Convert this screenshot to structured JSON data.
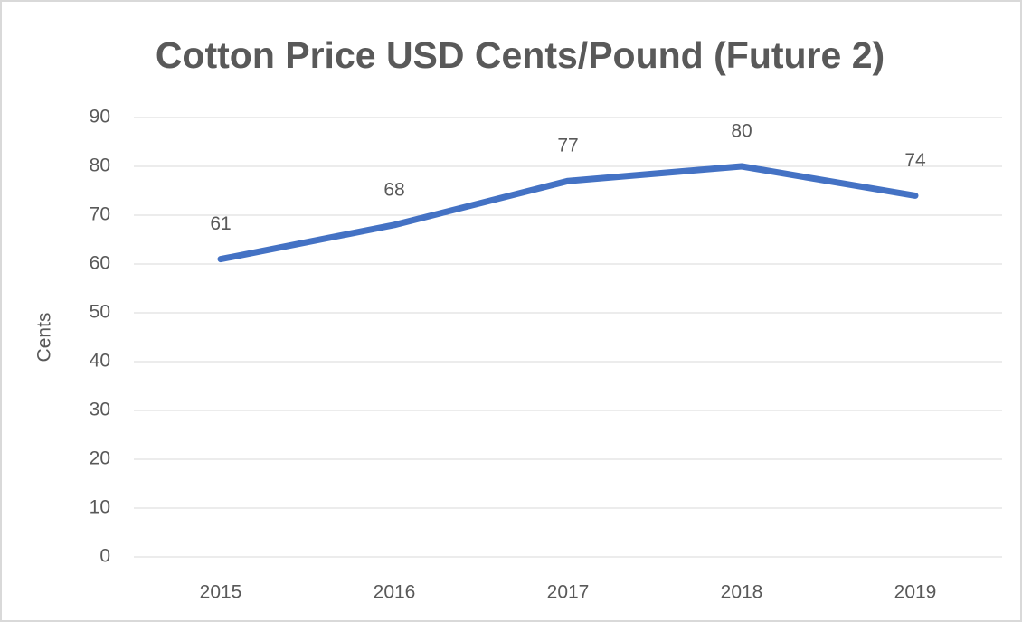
{
  "chart_data": {
    "type": "line",
    "title": "Cotton Price USD Cents/Pound (Future 2)",
    "y_label": "Cents",
    "categories": [
      "2015",
      "2016",
      "2017",
      "2018",
      "2019"
    ],
    "series": [
      {
        "name": "Cotton Price",
        "color": "#4472c4",
        "values": [
          61,
          68,
          77,
          80,
          74
        ]
      }
    ],
    "ylim": [
      0,
      90
    ],
    "yticks": [
      0,
      10,
      20,
      30,
      40,
      50,
      60,
      70,
      80,
      90
    ],
    "grid": true,
    "data_labels": true
  }
}
